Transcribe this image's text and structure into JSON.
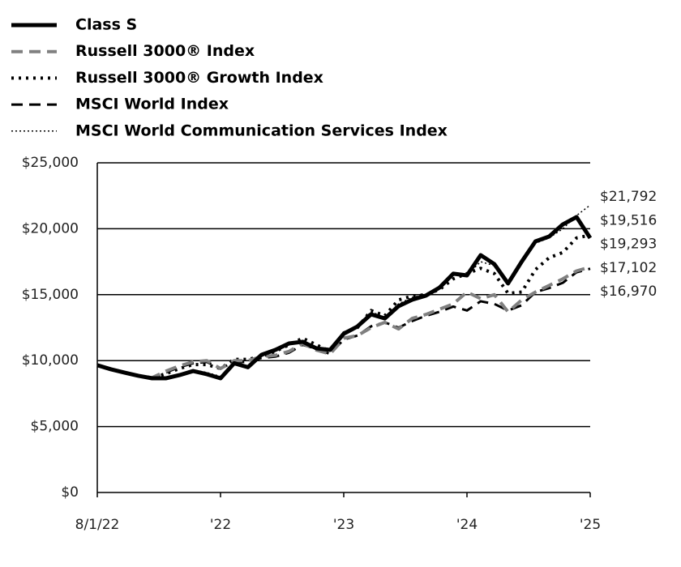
{
  "chart_data": {
    "type": "line",
    "categories": [
      "8/1/22",
      null,
      null,
      null,
      null,
      null,
      null,
      null,
      null,
      "'22",
      null,
      null,
      null,
      null,
      null,
      null,
      null,
      null,
      "'23",
      null,
      null,
      null,
      null,
      null,
      null,
      null,
      null,
      "'24",
      null,
      null,
      null,
      null,
      null,
      null,
      null,
      null,
      "'25"
    ],
    "series": [
      {
        "name": "Class S",
        "color": "#000000",
        "dash": "solid",
        "width": 5,
        "values": [
          9650,
          9340,
          9090,
          8850,
          8660,
          8660,
          8900,
          9210,
          8970,
          8660,
          9800,
          9500,
          10440,
          10810,
          11300,
          11430,
          10930,
          10810,
          12040,
          12590,
          13510,
          13200,
          14130,
          14620,
          14930,
          15540,
          16590,
          16460,
          18000,
          17320,
          15850,
          17510,
          19040,
          19410,
          20330,
          20890,
          19293
        ],
        "value_labels": [
          null,
          null,
          null,
          null,
          null,
          null,
          null,
          null,
          null,
          null,
          null,
          null,
          null,
          null,
          null,
          null,
          null,
          null,
          null,
          null,
          null,
          null,
          null,
          null,
          null,
          null,
          null,
          null,
          null,
          null,
          null,
          null,
          null,
          null,
          null,
          null,
          "$19,293"
        ]
      },
      {
        "name": "Russell 3000® Index",
        "color": "#808080",
        "dash": "dashed",
        "width": 4,
        "values": [
          9650,
          9350,
          9100,
          8850,
          8700,
          9200,
          9600,
          9900,
          10000,
          9400,
          10000,
          10000,
          10300,
          10400,
          10700,
          11300,
          10800,
          10500,
          11700,
          11900,
          12500,
          12900,
          12400,
          13200,
          13500,
          13900,
          14300,
          15200,
          14700,
          15000,
          13700,
          14600,
          15200,
          15700,
          16200,
          16800,
          17102
        ],
        "value_labels": [
          null,
          null,
          null,
          null,
          null,
          null,
          null,
          null,
          null,
          null,
          null,
          null,
          null,
          null,
          null,
          null,
          null,
          null,
          null,
          null,
          null,
          null,
          null,
          null,
          null,
          null,
          null,
          null,
          null,
          null,
          null,
          null,
          null,
          null,
          null,
          null,
          "$17,102"
        ]
      },
      {
        "name": "Russell 3000® Growth Index",
        "color": "#000000",
        "dash": "dotted",
        "width": 4,
        "values": [
          9650,
          9350,
          9100,
          8850,
          8700,
          9000,
          9400,
          9700,
          9700,
          9400,
          10100,
          10100,
          10300,
          10700,
          11200,
          11700,
          11200,
          10700,
          12100,
          12500,
          13800,
          13400,
          14600,
          14900,
          15000,
          15400,
          16200,
          16600,
          17000,
          16600,
          15100,
          15200,
          16900,
          17800,
          18200,
          19300,
          19516
        ],
        "value_labels": [
          null,
          null,
          null,
          null,
          null,
          null,
          null,
          null,
          null,
          null,
          null,
          null,
          null,
          null,
          null,
          null,
          null,
          null,
          null,
          null,
          null,
          null,
          null,
          null,
          null,
          null,
          null,
          null,
          null,
          null,
          null,
          null,
          null,
          null,
          null,
          null,
          "$19,516"
        ]
      },
      {
        "name": "MSCI World Index",
        "color": "#000000",
        "dash": "dashed",
        "width": 3,
        "values": [
          9650,
          9350,
          9100,
          8850,
          8700,
          9100,
          9500,
          9800,
          9900,
          9400,
          9900,
          9900,
          10200,
          10300,
          10600,
          11200,
          10900,
          10500,
          11600,
          11900,
          12600,
          12900,
          12500,
          13000,
          13400,
          13700,
          14100,
          13800,
          14500,
          14300,
          13800,
          14200,
          15200,
          15500,
          15900,
          16700,
          16970
        ],
        "value_labels": [
          null,
          null,
          null,
          null,
          null,
          null,
          null,
          null,
          null,
          null,
          null,
          null,
          null,
          null,
          null,
          null,
          null,
          null,
          null,
          null,
          null,
          null,
          null,
          null,
          null,
          null,
          null,
          null,
          null,
          null,
          null,
          null,
          null,
          null,
          null,
          null,
          "$16,970"
        ]
      },
      {
        "name": "MSCI World Communication Services Index",
        "color": "#000000",
        "dash": "thin-dotted",
        "width": 1.5,
        "values": [
          9650,
          9340,
          9090,
          8850,
          8660,
          8700,
          9000,
          9300,
          9100,
          8800,
          9900,
          9600,
          10400,
          10800,
          11300,
          11500,
          11000,
          10800,
          12100,
          12700,
          13700,
          13300,
          14300,
          14800,
          15000,
          15600,
          16500,
          16500,
          17500,
          17200,
          15800,
          17400,
          18900,
          19300,
          20000,
          21000,
          21792
        ],
        "value_labels": [
          null,
          null,
          null,
          null,
          null,
          null,
          null,
          null,
          null,
          null,
          null,
          null,
          null,
          null,
          null,
          null,
          null,
          null,
          null,
          null,
          null,
          null,
          null,
          null,
          null,
          null,
          null,
          null,
          null,
          null,
          null,
          null,
          null,
          null,
          null,
          null,
          "$21,792"
        ]
      }
    ],
    "ylim": [
      0,
      25000
    ],
    "yticks": [
      {
        "value": 0,
        "label": "$0"
      },
      {
        "value": 5000,
        "label": "$5,000"
      },
      {
        "value": 10000,
        "label": "$10,000"
      },
      {
        "value": 15000,
        "label": "$15,000"
      },
      {
        "value": 20000,
        "label": "$20,000"
      },
      {
        "value": 25000,
        "label": "$25,000"
      }
    ],
    "grid": true,
    "legend": "top-left"
  }
}
